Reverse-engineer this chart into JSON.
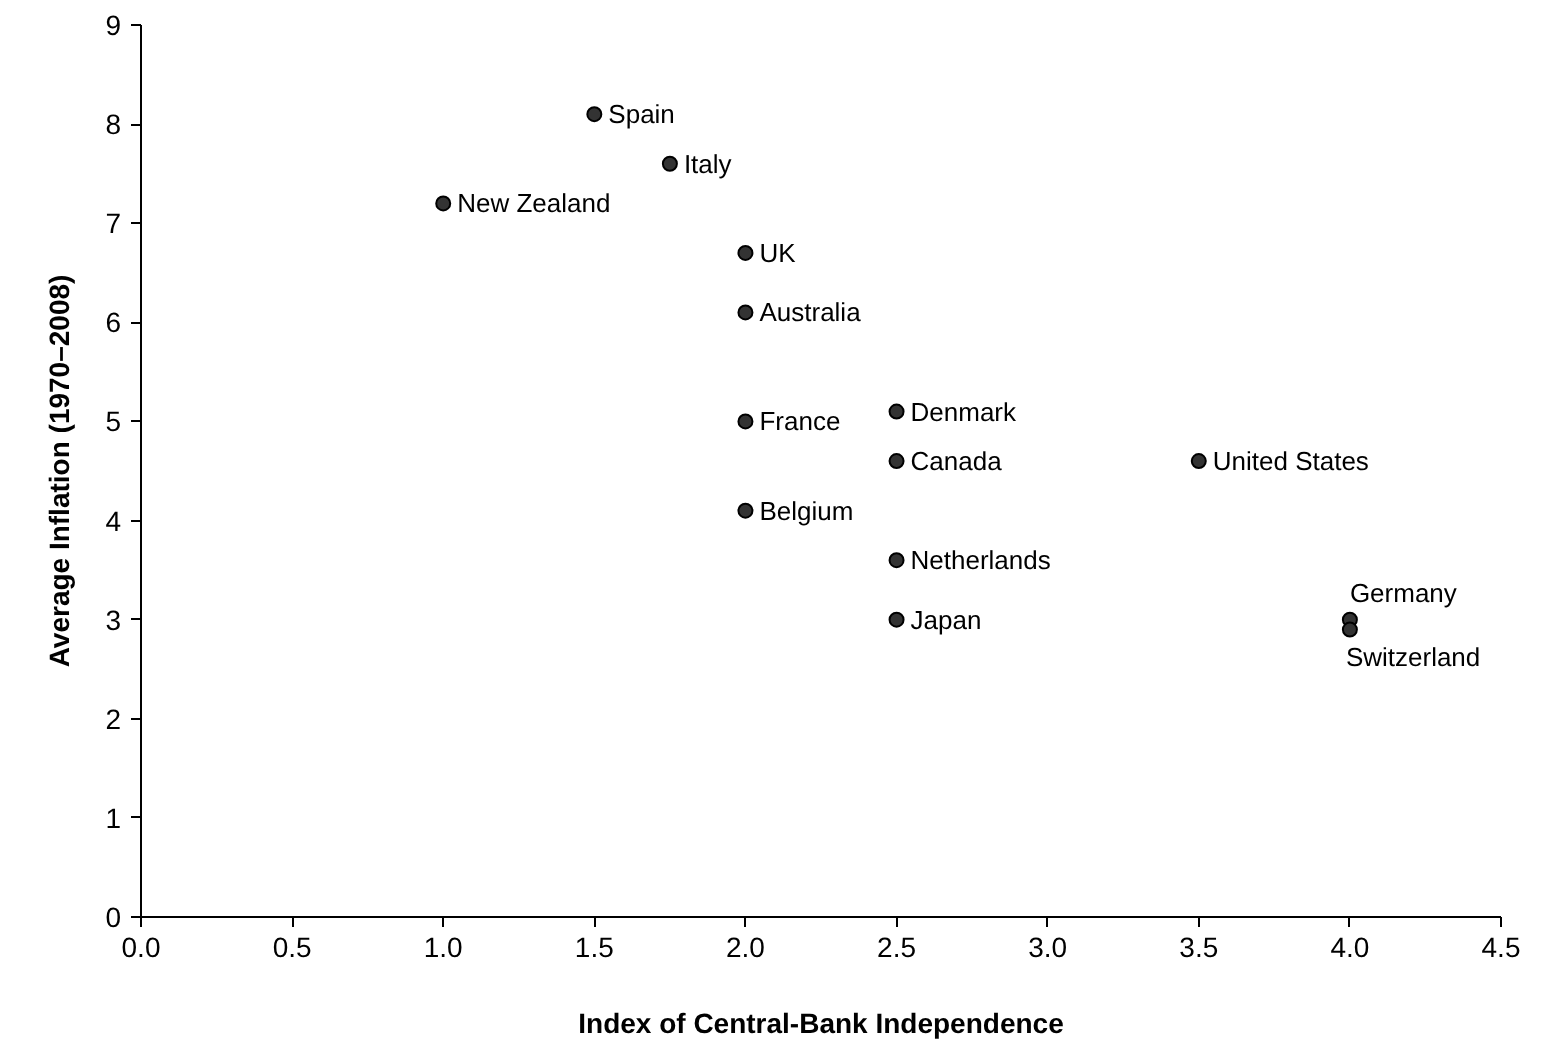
{
  "chart_data": {
    "type": "scatter",
    "xlabel": "Index of Central-Bank Independence",
    "ylabel": "Average Inflation (1970–2008)",
    "x": [
      1.5,
      1.75,
      1.0,
      2.0,
      2.0,
      2.0,
      2.0,
      2.5,
      2.5,
      2.5,
      2.5,
      3.5,
      4.0,
      4.0
    ],
    "values": [
      8.1,
      7.6,
      7.2,
      6.7,
      6.1,
      5.0,
      4.1,
      5.1,
      4.6,
      3.6,
      3.0,
      4.6,
      3.0,
      2.9
    ],
    "color": "#333333",
    "marker": "circle",
    "grid": false,
    "xlim": [
      0,
      4.5
    ],
    "xticks": [
      {
        "value": 0,
        "label": "0.0"
      },
      {
        "value": 0.5,
        "label": "0.5"
      },
      {
        "value": 1,
        "label": "1.0"
      },
      {
        "value": 1.5,
        "label": "1.5"
      },
      {
        "value": 2,
        "label": "2.0"
      },
      {
        "value": 2.5,
        "label": "2.5"
      },
      {
        "value": 3,
        "label": "3.0"
      },
      {
        "value": 3.5,
        "label": "3.5"
      },
      {
        "value": 4,
        "label": "4.0"
      },
      {
        "value": 4.5,
        "label": "4.5"
      }
    ],
    "ylim": [
      0,
      9
    ],
    "yticks": [
      0,
      1,
      2,
      3,
      4,
      5,
      6,
      7,
      8,
      9
    ],
    "annotations": [
      {
        "text": "Spain",
        "x": 1.5,
        "y": 8.1
      },
      {
        "text": "Italy",
        "x": 1.75,
        "y": 7.6
      },
      {
        "text": "New Zealand",
        "x": 1.0,
        "y": 7.2
      },
      {
        "text": "UK",
        "x": 2.0,
        "y": 6.7
      },
      {
        "text": "Australia",
        "x": 2.0,
        "y": 6.1
      },
      {
        "text": "France",
        "x": 2.0,
        "y": 5.0
      },
      {
        "text": "Belgium",
        "x": 2.0,
        "y": 4.1
      },
      {
        "text": "Denmark",
        "x": 2.5,
        "y": 5.1
      },
      {
        "text": "Canada",
        "x": 2.5,
        "y": 4.6
      },
      {
        "text": "Netherlands",
        "x": 2.5,
        "y": 3.6
      },
      {
        "text": "Japan",
        "x": 2.5,
        "y": 3.0
      },
      {
        "text": "United States",
        "x": 3.5,
        "y": 4.6
      },
      {
        "text": "Germany",
        "x": 4.0,
        "y": 3.0
      },
      {
        "text": "Switzerland",
        "x": 4.0,
        "y": 2.9
      }
    ]
  }
}
